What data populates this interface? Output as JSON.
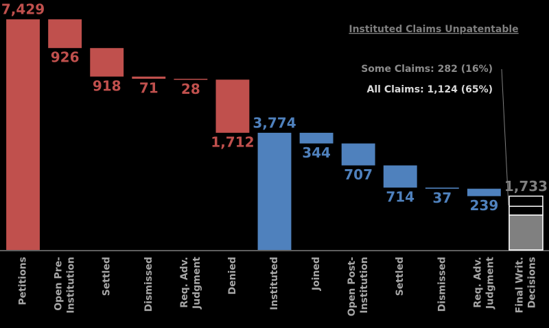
{
  "chart_data": {
    "type": "waterfall",
    "categories": [
      [
        "Petitions"
      ],
      [
        "Open Pre-",
        "Institution"
      ],
      [
        "Settled"
      ],
      [
        "Dismissed"
      ],
      [
        "Req. Adv.",
        "Judgment"
      ],
      [
        "Denied"
      ],
      [
        "Instituted"
      ],
      [
        "Joined"
      ],
      [
        "Open Post-",
        "Institution"
      ],
      [
        "Settled"
      ],
      [
        "Dismissed"
      ],
      [
        "Req. Adv.",
        "Judgment"
      ],
      [
        "Final Writ.",
        "Decisions"
      ]
    ],
    "values": [
      7429,
      926,
      918,
      71,
      28,
      1712,
      3774,
      344,
      707,
      714,
      37,
      239,
      1733
    ],
    "value_labels": [
      "7,429",
      "926",
      "918",
      "71",
      "28",
      "1,712",
      "3,774",
      "344",
      "707",
      "714",
      "37",
      "239",
      "1,733"
    ],
    "measure": [
      "total",
      "decrease",
      "decrease",
      "decrease",
      "decrease",
      "decrease",
      "total",
      "decrease",
      "decrease",
      "decrease",
      "decrease",
      "decrease",
      "total"
    ],
    "colors": [
      "#c0504d",
      "#c0504d",
      "#c0504d",
      "#c0504d",
      "#c0504d",
      "#c0504d",
      "#4f81bd",
      "#4f81bd",
      "#4f81bd",
      "#4f81bd",
      "#4f81bd",
      "#4f81bd",
      "#000000"
    ],
    "label_colors": [
      "#c0504d",
      "#c0504d",
      "#c0504d",
      "#c0504d",
      "#c0504d",
      "#c0504d",
      "#4f81bd",
      "#4f81bd",
      "#4f81bd",
      "#4f81bd",
      "#4f81bd",
      "#4f81bd",
      "#7f7f7f"
    ],
    "ylim": [
      0,
      7500
    ],
    "annotation_title": "Instituted Claims Unpatentable",
    "final_segments": [
      {
        "value": 1124,
        "color": "#808080",
        "label": "All Claims: 1,124 (65%)"
      },
      {
        "value": 282,
        "color": "#000000",
        "label": "Some Claims: 282 (16%)"
      }
    ]
  }
}
